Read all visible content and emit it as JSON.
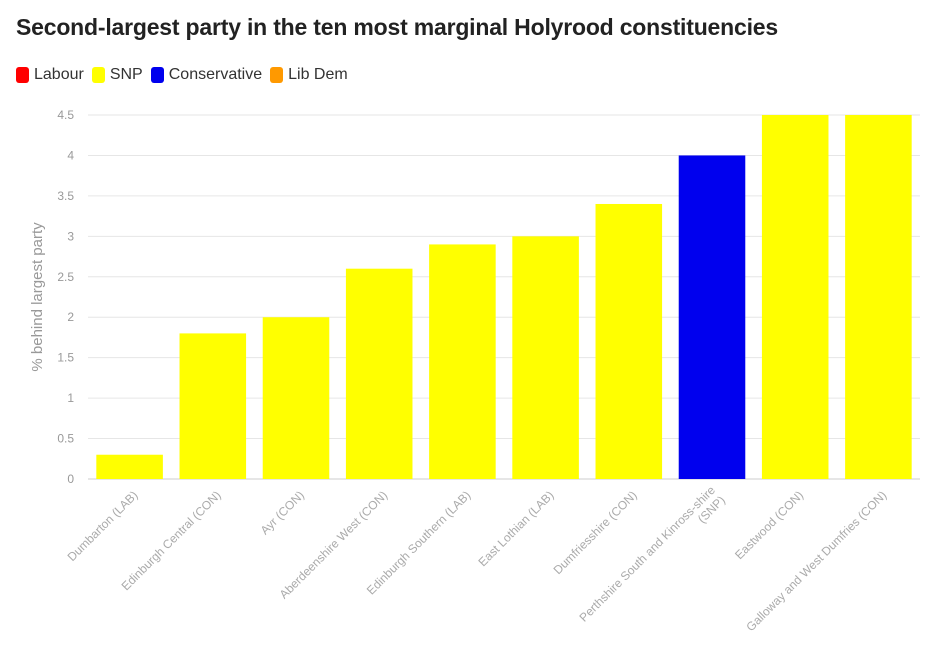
{
  "chart_data": {
    "type": "bar",
    "title": "Second-largest party in the ten most marginal Holyrood constituencies",
    "ylabel": "% behind largest party",
    "xlabel": "",
    "ylim": [
      0,
      4.5
    ],
    "yticks": [
      "0",
      "0.5",
      "1",
      "1.5",
      "2",
      "2.5",
      "3",
      "3.5",
      "4",
      "4.5"
    ],
    "grid": true,
    "legend_position": "top-left",
    "legend": [
      {
        "name": "Labour",
        "color": "#ff0000"
      },
      {
        "name": "SNP",
        "color": "#ffff00"
      },
      {
        "name": "Conservative",
        "color": "#0000ee"
      },
      {
        "name": "Lib Dem",
        "color": "#ff9900"
      }
    ],
    "categories": [
      [
        "Dumbarton (LAB)"
      ],
      [
        "Edinburgh Central (CON)"
      ],
      [
        "Ayr (CON)"
      ],
      [
        "Aberdeenshire West (CON)"
      ],
      [
        "Edinburgh Southern (LAB)"
      ],
      [
        "East Lothian (LAB)"
      ],
      [
        "Dumfriesshire (CON)"
      ],
      [
        "Perthshire South and Kinross-shire",
        "(SNP)"
      ],
      [
        "Eastwood (CON)"
      ],
      [
        "Galloway and West Dumfries (CON)"
      ]
    ],
    "values": [
      0.3,
      1.8,
      2.0,
      2.6,
      2.9,
      3.0,
      3.4,
      4.0,
      4.5,
      4.5
    ],
    "bar_parties": [
      "SNP",
      "SNP",
      "SNP",
      "SNP",
      "SNP",
      "SNP",
      "SNP",
      "Conservative",
      "SNP",
      "SNP"
    ]
  }
}
